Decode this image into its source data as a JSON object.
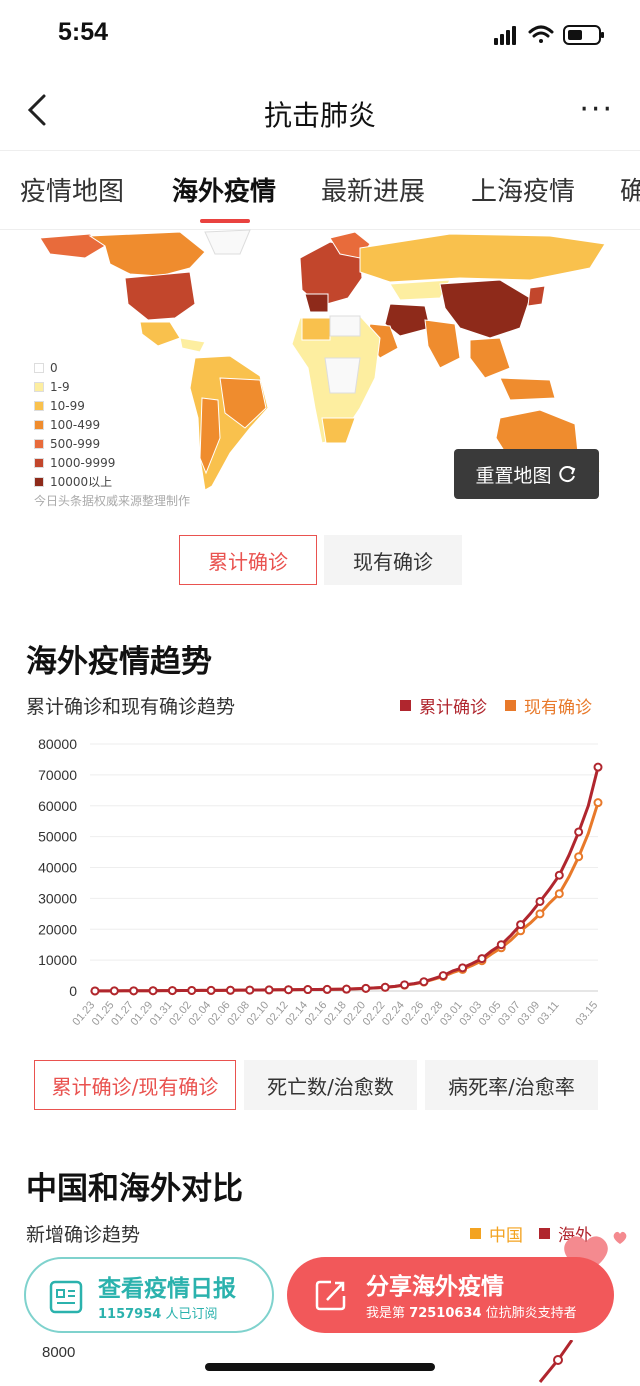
{
  "status": {
    "time": "5:54"
  },
  "nav": {
    "title": "抗击肺炎",
    "more": "···"
  },
  "tabs": [
    {
      "label": "疫情地图"
    },
    {
      "label": "海外疫情",
      "active": true
    },
    {
      "label": "最新进展"
    },
    {
      "label": "上海疫情"
    },
    {
      "label": "确"
    }
  ],
  "map": {
    "legend": [
      {
        "label": "0",
        "color": "#ffffff"
      },
      {
        "label": "1-9",
        "color": "#fdeea0"
      },
      {
        "label": "10-99",
        "color": "#f9c14d"
      },
      {
        "label": "100-499",
        "color": "#ef8c2e"
      },
      {
        "label": "500-999",
        "color": "#e86b3b"
      },
      {
        "label": "1000-9999",
        "color": "#c2462c"
      },
      {
        "label": "10000以上",
        "color": "#8e2a1a"
      }
    ],
    "source": "今日头条据权威来源整理制作",
    "reset_label": "重置地图",
    "toggle": {
      "cumulative": "累计确诊",
      "current": "现有确诊"
    }
  },
  "trend": {
    "title": "海外疫情趋势",
    "subtitle": "累计确诊和现有确诊趋势",
    "legend": {
      "cumulative": "累计确诊",
      "current": "现有确诊"
    },
    "buttons": [
      "累计确诊/现有确诊",
      "死亡数/治愈数",
      "病死率/治愈率"
    ]
  },
  "compare": {
    "title": "中国和海外对比",
    "subtitle": "新增确诊趋势",
    "legend": {
      "china": "中国",
      "overseas": "海外"
    },
    "axis_label": "8000"
  },
  "bottom": {
    "daily": {
      "label": "查看疫情日报",
      "count": "1157954",
      "count_suffix": "人已订阅"
    },
    "share": {
      "label": "分享海外疫情",
      "prefix": "我是第",
      "number": "72510634",
      "suffix": "位抗肺炎支持者"
    }
  },
  "colors": {
    "accent": "#e9423f",
    "cumulative": "#b0262e",
    "current": "#e8792a",
    "teal": "#2bb2ad"
  },
  "chart_data": {
    "type": "line",
    "title": "累计确诊和现有确诊趋势",
    "x": [
      "01.23",
      "01.24",
      "01.25",
      "01.26",
      "01.27",
      "01.28",
      "01.29",
      "01.30",
      "01.31",
      "02.01",
      "02.02",
      "02.03",
      "02.04",
      "02.05",
      "02.06",
      "02.07",
      "02.08",
      "02.09",
      "02.10",
      "02.11",
      "02.12",
      "02.13",
      "02.14",
      "02.15",
      "02.16",
      "02.17",
      "02.18",
      "02.19",
      "02.20",
      "02.21",
      "02.22",
      "02.23",
      "02.24",
      "02.25",
      "02.26",
      "02.27",
      "02.28",
      "02.29",
      "03.01",
      "03.02",
      "03.03",
      "03.04",
      "03.05",
      "03.06",
      "03.07",
      "03.08",
      "03.09",
      "03.10",
      "03.11",
      "03.12",
      "03.13",
      "03.14",
      "03.15"
    ],
    "x_ticks": [
      "01.23",
      "01.25",
      "01.27",
      "01.29",
      "01.31",
      "02.02",
      "02.04",
      "02.06",
      "02.08",
      "02.10",
      "02.12",
      "02.14",
      "02.16",
      "02.18",
      "02.20",
      "02.22",
      "02.24",
      "02.26",
      "02.28",
      "03.01",
      "03.03",
      "03.05",
      "03.07",
      "03.09",
      "03.11",
      "03.15"
    ],
    "series": [
      {
        "name": "累计确诊",
        "values": [
          20,
          30,
          40,
          50,
          60,
          80,
          90,
          120,
          140,
          160,
          170,
          180,
          190,
          200,
          240,
          280,
          300,
          320,
          360,
          400,
          420,
          440,
          470,
          500,
          520,
          560,
          600,
          700,
          850,
          1000,
          1200,
          1500,
          2000,
          2400,
          3000,
          4000,
          5000,
          6500,
          7500,
          8900,
          10500,
          13000,
          15000,
          18000,
          21500,
          25000,
          29000,
          33000,
          37500,
          44000,
          51500,
          60000,
          72500
        ]
      },
      {
        "name": "现有确诊",
        "values": [
          20,
          30,
          40,
          50,
          60,
          80,
          90,
          120,
          140,
          160,
          170,
          180,
          190,
          200,
          240,
          280,
          300,
          320,
          360,
          400,
          420,
          440,
          470,
          500,
          520,
          560,
          600,
          700,
          850,
          1000,
          1200,
          1450,
          1900,
          2300,
          2900,
          3800,
          4700,
          6000,
          7000,
          8300,
          9800,
          12000,
          14000,
          16500,
          19500,
          22000,
          25000,
          28500,
          31500,
          37000,
          43500,
          51000,
          61000
        ]
      }
    ],
    "ylim": [
      0,
      80000
    ],
    "yticks": [
      0,
      10000,
      20000,
      30000,
      40000,
      50000,
      60000,
      70000,
      80000
    ],
    "legend": "top-right"
  }
}
